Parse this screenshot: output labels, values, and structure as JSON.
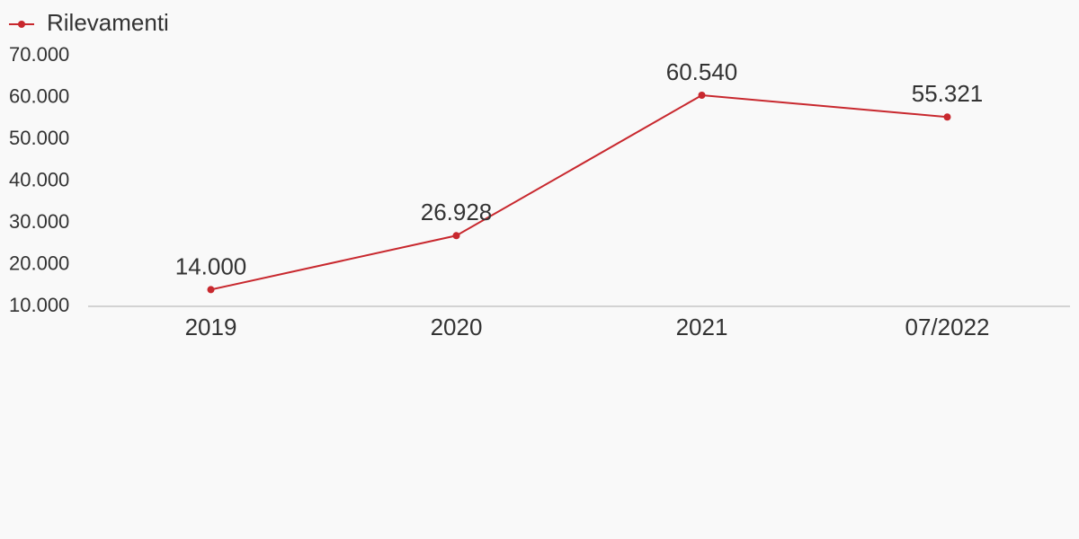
{
  "chart_data": {
    "type": "line",
    "categories": [
      "2019",
      "2020",
      "2021",
      "07/2022"
    ],
    "series": [
      {
        "name": "Rilevamenti",
        "color": "#c8282e",
        "values": [
          14000,
          26928,
          60540,
          55321
        ],
        "value_labels": [
          "14.000",
          "26.928",
          "60.540",
          "55.321"
        ]
      }
    ],
    "ylim": [
      10000,
      70000
    ],
    "yticks": [
      {
        "value": 10000,
        "label": "10.000"
      },
      {
        "value": 20000,
        "label": "20.000"
      },
      {
        "value": 30000,
        "label": "30.000"
      },
      {
        "value": 40000,
        "label": "40.000"
      },
      {
        "value": 50000,
        "label": "50.000"
      },
      {
        "value": 60000,
        "label": "60.000"
      },
      {
        "value": 70000,
        "label": "70.000"
      }
    ],
    "legend": "top-left",
    "grid": false
  }
}
